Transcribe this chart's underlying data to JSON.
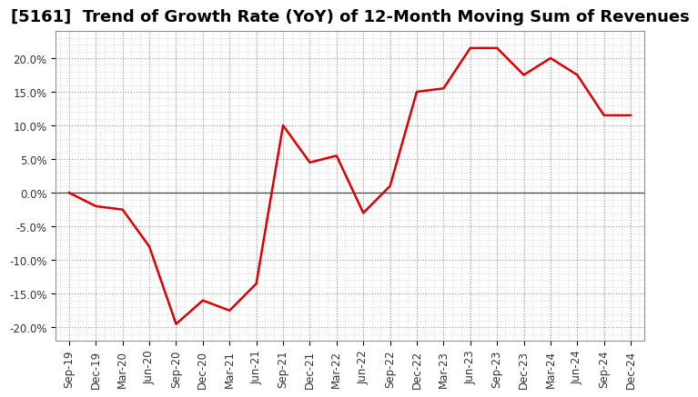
{
  "title": "[5161]  Trend of Growth Rate (YoY) of 12-Month Moving Sum of Revenues",
  "x_labels": [
    "Sep-19",
    "Dec-19",
    "Mar-20",
    "Jun-20",
    "Sep-20",
    "Dec-20",
    "Mar-21",
    "Jun-21",
    "Sep-21",
    "Dec-21",
    "Mar-22",
    "Jun-22",
    "Sep-22",
    "Dec-22",
    "Mar-23",
    "Jun-23",
    "Sep-23",
    "Dec-23",
    "Mar-24",
    "Jun-24",
    "Sep-24",
    "Dec-24"
  ],
  "y_values": [
    0.0,
    -2.0,
    -2.5,
    -8.0,
    -19.5,
    -16.0,
    -17.5,
    -13.5,
    10.0,
    4.5,
    5.5,
    -3.0,
    1.0,
    15.0,
    15.5,
    21.5,
    21.5,
    17.5,
    20.0,
    17.5,
    11.5,
    11.5
  ],
  "line_color": "#dd0000",
  "line_width": 1.8,
  "bg_color": "#ffffff",
  "plot_bg_color": "#ffffff",
  "major_grid_color": "#999999",
  "minor_grid_color": "#bbbbbb",
  "zero_line_color": "#444444",
  "ylim": [
    -22,
    24
  ],
  "yticks": [
    -20,
    -15,
    -10,
    -5,
    0,
    5,
    10,
    15,
    20
  ],
  "title_fontsize": 13,
  "tick_fontsize": 8.5,
  "title_color": "#000000",
  "tick_label_color": "#333333"
}
